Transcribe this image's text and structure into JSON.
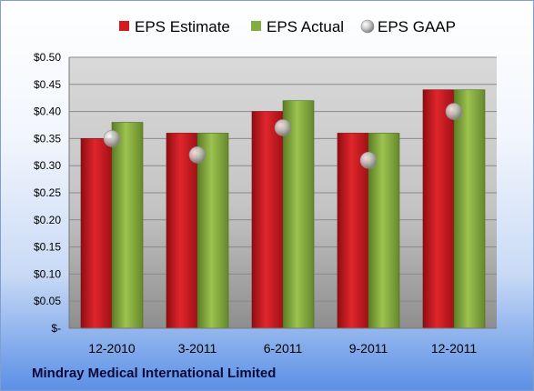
{
  "company_name": "Mindray Medical International Limited",
  "chart_data": {
    "type": "bar",
    "categories": [
      "12-2010",
      "3-2011",
      "6-2011",
      "9-2011",
      "12-2011"
    ],
    "series": [
      {
        "name": "EPS Estimate",
        "kind": "bar",
        "color": "#c8161d",
        "values": [
          0.35,
          0.36,
          0.4,
          0.36,
          0.44
        ]
      },
      {
        "name": "EPS Actual",
        "kind": "bar",
        "color": "#7aa33a",
        "values": [
          0.38,
          0.36,
          0.42,
          0.36,
          0.44
        ]
      },
      {
        "name": "EPS GAAP",
        "kind": "marker",
        "color": "#b8b8b8",
        "values": [
          0.35,
          0.32,
          0.37,
          0.31,
          0.4
        ]
      }
    ],
    "ylim": [
      0,
      0.5
    ],
    "yticks": [
      0,
      0.05,
      0.1,
      0.15,
      0.2,
      0.25,
      0.3,
      0.35,
      0.4,
      0.45,
      0.5
    ],
    "ytick_labels": [
      "$-",
      "$0.05",
      "$0.10",
      "$0.15",
      "$0.20",
      "$0.25",
      "$0.30",
      "$0.35",
      "$0.40",
      "$0.45",
      "$0.50"
    ],
    "grid": true,
    "legend_position": "top"
  }
}
